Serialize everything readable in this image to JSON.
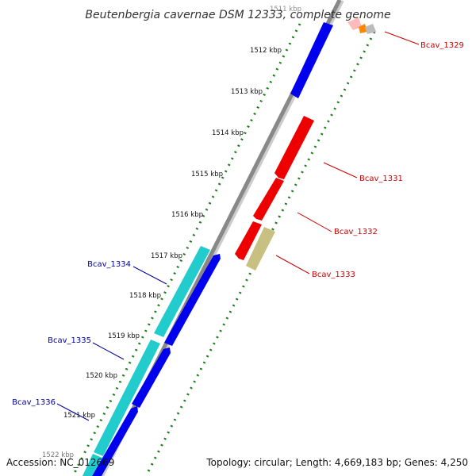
{
  "title": "Beutenbergia cavernae DSM 12333, complete genome",
  "accession": "Accession: NC_012669",
  "topology": "Topology: circular; Length: 4,669,183 bp; Genes: 4,250",
  "colors": {
    "backbone": "#888888",
    "tick_dots": "#1a7a1a",
    "forward_gene_label": "#cc0000",
    "reverse_gene_label": "#000099",
    "blue_gene": "#0000ee",
    "cyan_gene": "#22cccc",
    "red_gene": "#ee0000",
    "olive_gene": "#c8c080",
    "pink_gene": "#ffbbbb",
    "orange_gene": "#ff8800"
  },
  "ticks": [
    "1511 kbp",
    "1512 kbp",
    "1513 kbp",
    "1514 kbp",
    "1515 kbp",
    "1516 kbp",
    "1517 kbp",
    "1518 kbp",
    "1519 kbp",
    "1520 kbp",
    "1521 kbp",
    "1522 kbp"
  ],
  "gene_labels": {
    "right": [
      "Bcav_1329",
      "Bcav_1331",
      "Bcav_1332",
      "Bcav_1333"
    ],
    "left": [
      "Bcav_1334",
      "Bcav_1335",
      "Bcav_1336"
    ]
  }
}
